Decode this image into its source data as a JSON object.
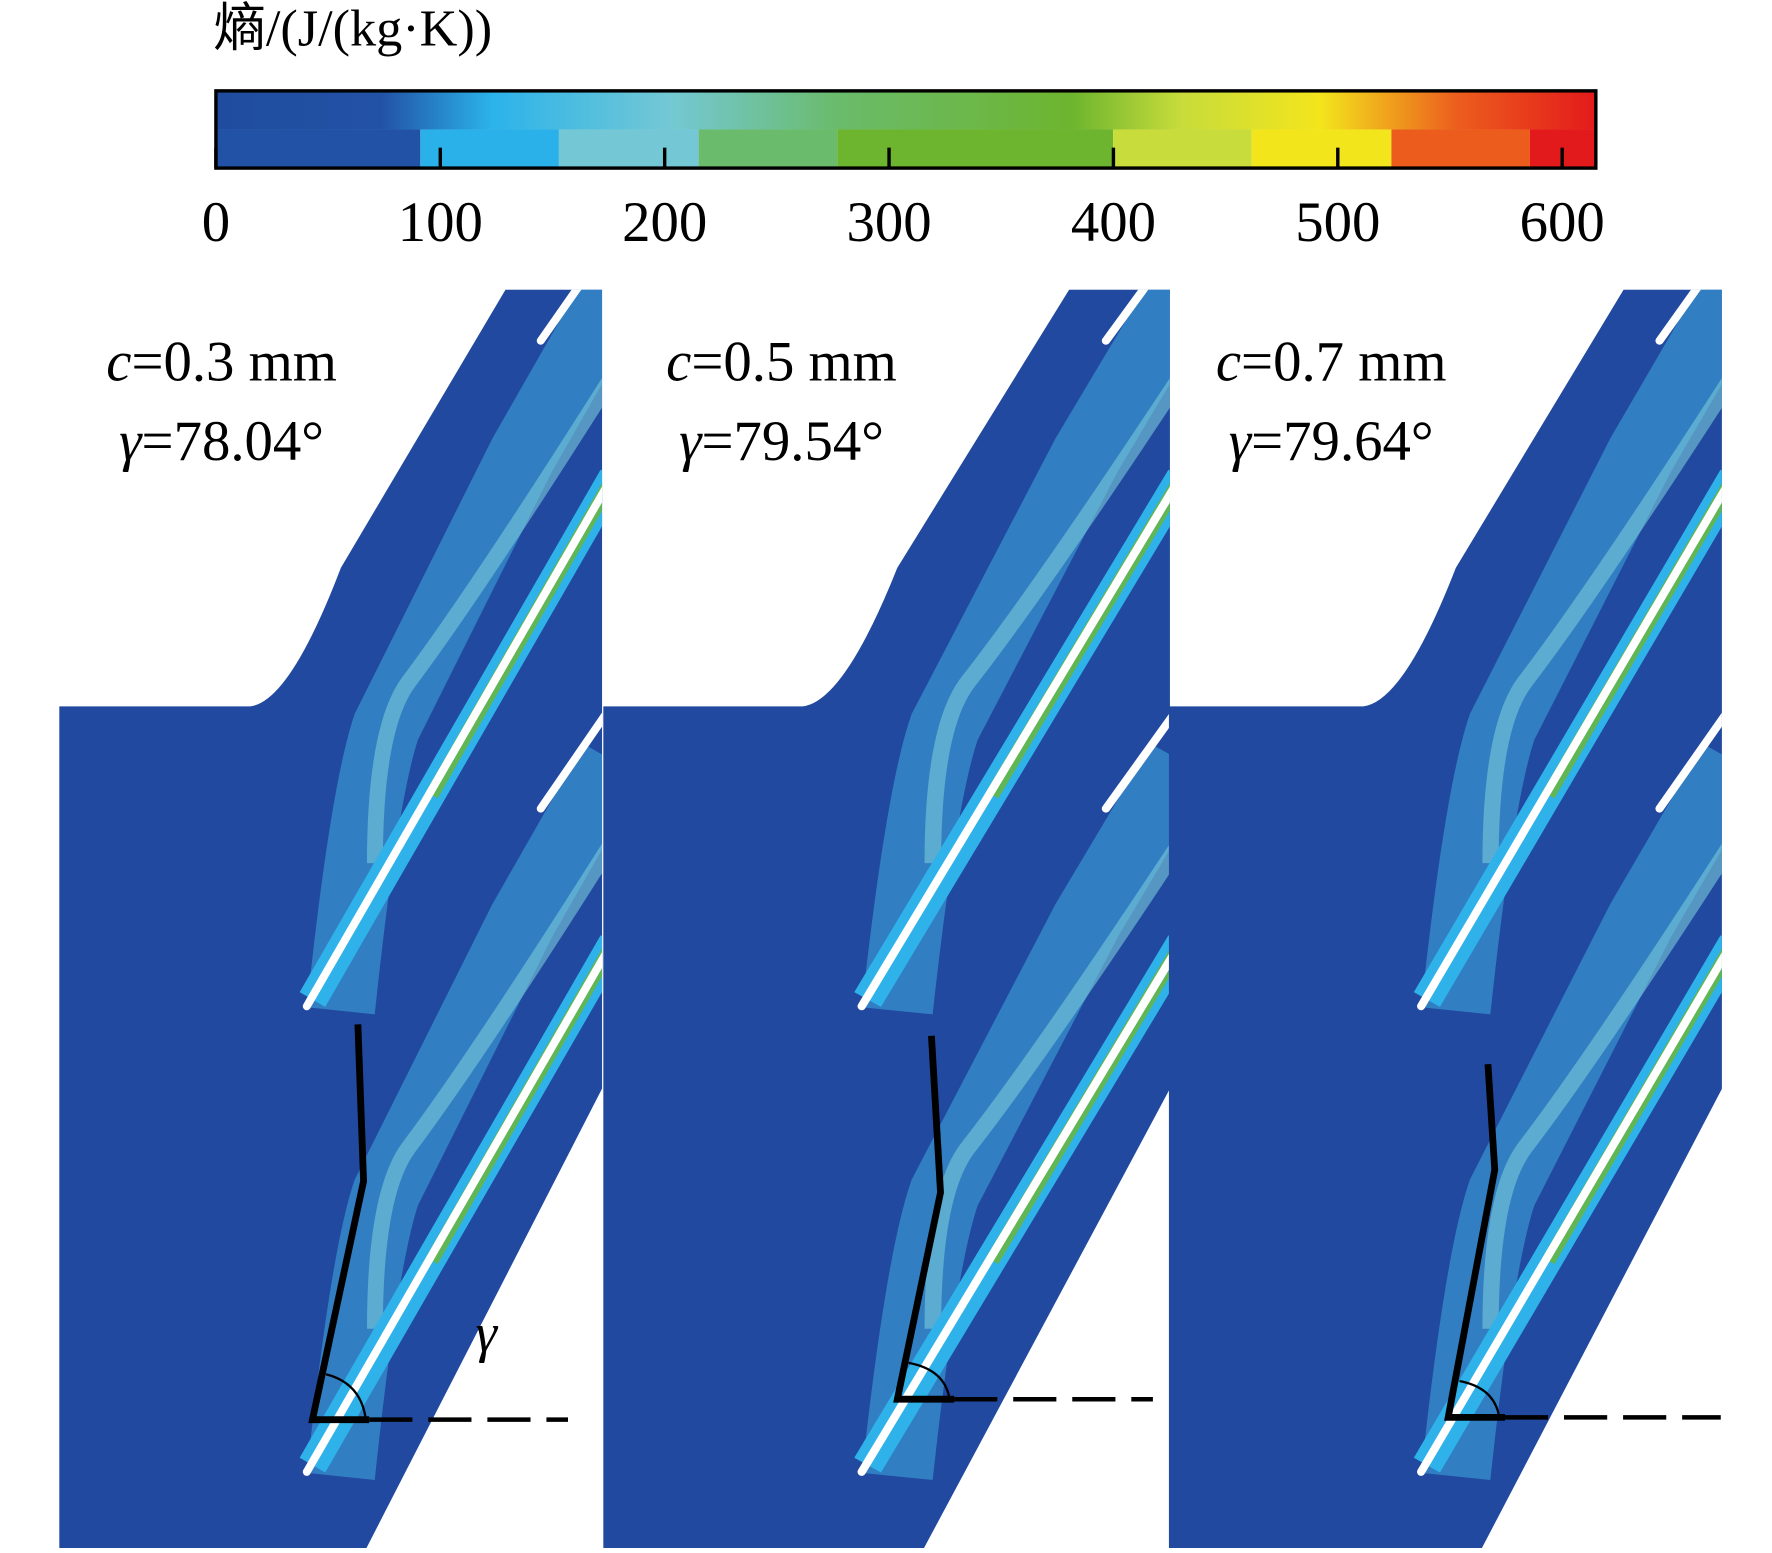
{
  "colorbar": {
    "title": "熵/(J/(kg·K))",
    "lim": [
      0,
      615
    ],
    "ticks": [
      0,
      100,
      200,
      300,
      400,
      500,
      600
    ]
  },
  "panels": [
    {
      "clearance": "c=0.3 mm",
      "angle": "γ=78.04°"
    },
    {
      "clearance": "c=0.5 mm",
      "angle": "γ=79.54°"
    },
    {
      "clearance": "c=0.7 mm",
      "angle": "γ=79.64°"
    }
  ],
  "annotation": "γ"
}
